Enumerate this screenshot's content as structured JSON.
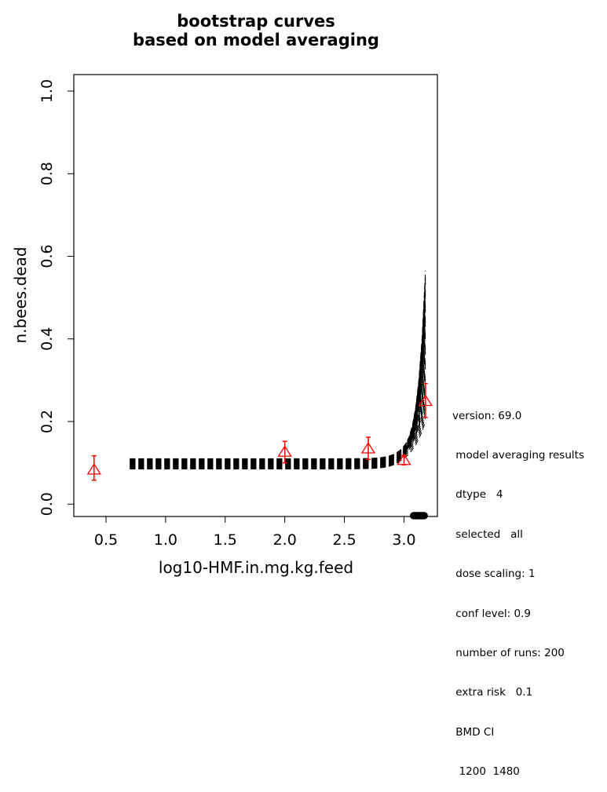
{
  "chart_data": {
    "type": "line",
    "title": [
      "bootstrap curves",
      "based on model averaging"
    ],
    "xlabel": "log10-HMF.in.mg.kg.feed",
    "ylabel": "n.bees.dead",
    "xlim": [
      0.23,
      3.28
    ],
    "ylim": [
      -0.03,
      1.04
    ],
    "xticks": [
      {
        "v": 0.5,
        "label": "0.5"
      },
      {
        "v": 1.0,
        "label": "1.0"
      },
      {
        "v": 1.5,
        "label": "1.5"
      },
      {
        "v": 2.0,
        "label": "2.0"
      },
      {
        "v": 2.5,
        "label": "2.5"
      },
      {
        "v": 3.0,
        "label": "3.0"
      }
    ],
    "yticks": [
      {
        "v": 0.0,
        "label": "0.0"
      },
      {
        "v": 0.2,
        "label": "0.2"
      },
      {
        "v": 0.4,
        "label": "0.4"
      },
      {
        "v": 0.6,
        "label": "0.6"
      },
      {
        "v": 0.8,
        "label": "0.8"
      },
      {
        "v": 1.0,
        "label": "1.0"
      }
    ],
    "bootstrap_curves": {
      "count": 200,
      "x_start": 0.7,
      "x_end": 3.18,
      "baseline_range": [
        0.085,
        0.11
      ],
      "end_range": [
        0.2,
        0.565
      ]
    },
    "observed_points": [
      {
        "x": 0.4,
        "y": 0.082,
        "lower": 0.058,
        "upper": 0.117
      },
      {
        "x": 2.0,
        "y": 0.125,
        "lower": 0.1,
        "upper": 0.152
      },
      {
        "x": 2.7,
        "y": 0.133,
        "lower": 0.108,
        "upper": 0.162
      },
      {
        "x": 3.0,
        "y": 0.105,
        "lower": 0.095,
        "upper": 0.118
      },
      {
        "x": 3.18,
        "y": 0.248,
        "lower": 0.21,
        "upper": 0.292
      }
    ],
    "bmd_ci": {
      "lower": 3.08,
      "upper": 3.17
    },
    "grid": false,
    "colors": {
      "curves": "#000000",
      "points": "#ff0000",
      "axes": "#000000"
    }
  },
  "info_panel": [
    "version: 69.0",
    " model averaging results",
    " dtype   4",
    " selected   all",
    " dose scaling: 1",
    " conf level: 0.9",
    " number of runs: 200",
    " extra risk   0.1",
    " BMD CI",
    "  1200  1480"
  ]
}
